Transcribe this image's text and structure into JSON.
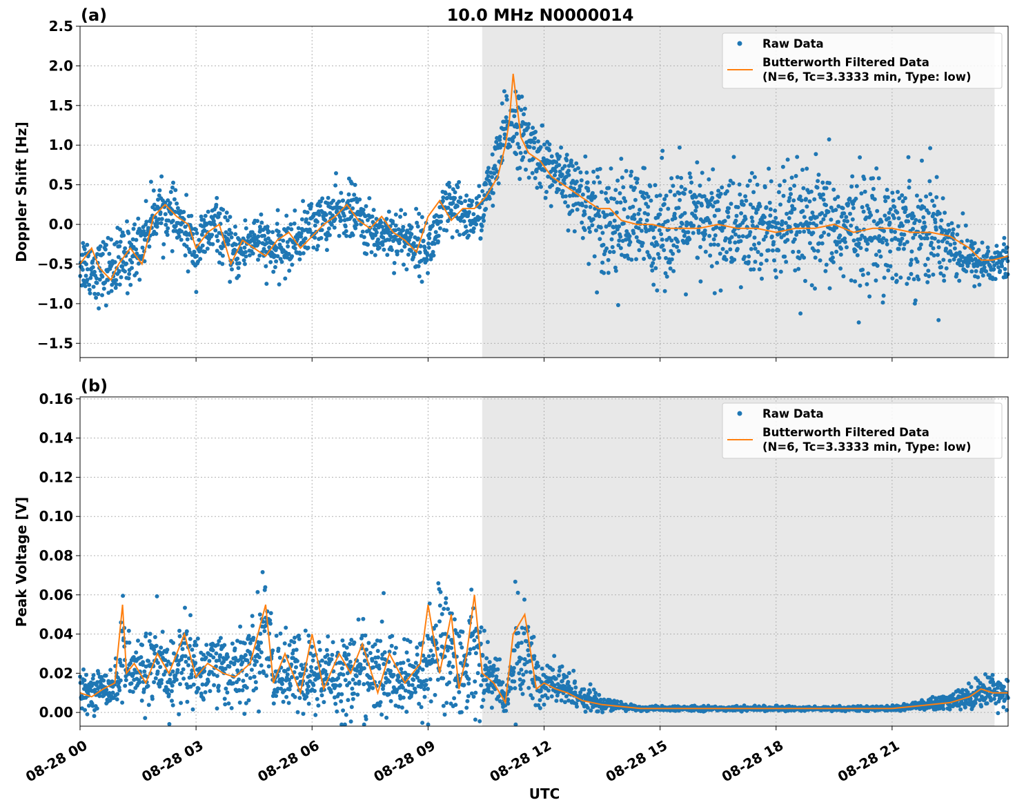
{
  "figure": {
    "title": "10.0 MHz N0000014",
    "xlabel": "UTC"
  },
  "chart_data": [
    {
      "type": "scatter",
      "panel_label": "(a)",
      "ylabel": "Doppler Shift [Hz]",
      "ylim": [
        -1.68,
        2.5
      ],
      "yticks": [
        -1.5,
        -1.0,
        -0.5,
        0.0,
        0.5,
        1.0,
        1.5,
        2.0,
        2.5
      ],
      "ytick_labels": [
        "−1.5",
        "−1.0",
        "−0.5",
        "0.0",
        "0.5",
        "1.0",
        "1.5",
        "2.0",
        "2.5"
      ],
      "xlim_hours": [
        0,
        24
      ],
      "shaded_span_hours": [
        10.4,
        23.65
      ],
      "grid": true,
      "legend": {
        "placement": "upper right",
        "entries": [
          "Raw Data",
          "Butterworth Filtered Data",
          "(N=6, Tc=3.3333 min, Type: low)"
        ]
      },
      "series": [
        {
          "name": "Raw Data",
          "style": "points",
          "color": "#1f77b4",
          "x_hours": [
            0,
            0.5,
            1,
            1.5,
            2,
            2.5,
            3,
            3.5,
            4,
            4.5,
            5,
            5.5,
            6,
            6.5,
            7,
            7.5,
            8,
            8.5,
            9,
            9.5,
            10,
            10.3,
            10.5,
            10.8,
            11,
            11.2,
            11.5,
            12,
            12.5,
            13,
            13.5,
            14,
            14.5,
            15,
            15.5,
            16,
            16.5,
            17,
            17.5,
            18,
            18.5,
            19,
            19.5,
            20,
            20.5,
            21,
            21.5,
            22,
            22.5,
            23,
            23.5,
            24
          ],
          "center": [
            -0.45,
            -0.6,
            -0.5,
            -0.3,
            0.2,
            0.05,
            -0.3,
            0,
            -0.4,
            -0.15,
            -0.35,
            -0.25,
            0,
            0.1,
            0.2,
            -0.1,
            -0.1,
            -0.2,
            -0.3,
            0.2,
            0.1,
            0.1,
            0.35,
            0.75,
            1.2,
            1.35,
            1.05,
            0.8,
            0.5,
            0.35,
            0.1,
            0,
            0,
            0,
            0,
            0,
            0,
            -0.05,
            -0.05,
            -0.05,
            -0.05,
            -0.05,
            -0.05,
            -0.05,
            -0.05,
            -0.05,
            -0.05,
            -0.05,
            -0.2,
            -0.45,
            -0.5,
            -0.45
          ],
          "spread": [
            0.35,
            0.35,
            0.4,
            0.35,
            0.3,
            0.3,
            0.35,
            0.3,
            0.3,
            0.3,
            0.3,
            0.3,
            0.3,
            0.3,
            0.3,
            0.3,
            0.3,
            0.35,
            0.3,
            0.35,
            0.3,
            0.3,
            0.35,
            0.35,
            0.45,
            0.45,
            0.4,
            0.35,
            0.35,
            0.45,
            0.6,
            0.65,
            0.65,
            0.65,
            0.65,
            0.65,
            0.65,
            0.65,
            0.65,
            0.65,
            0.65,
            0.65,
            0.65,
            0.65,
            0.65,
            0.65,
            0.65,
            0.65,
            0.5,
            0.25,
            0.25,
            0.25
          ]
        },
        {
          "name": "Butterworth Filtered Data",
          "style": "line",
          "color": "#ff7f0e",
          "x_hours": [
            0,
            0.3,
            0.5,
            0.8,
            1,
            1.3,
            1.6,
            1.9,
            2.2,
            2.5,
            2.8,
            3,
            3.3,
            3.6,
            3.9,
            4.2,
            4.5,
            4.8,
            5.1,
            5.4,
            5.7,
            6,
            6.3,
            6.6,
            6.9,
            7.2,
            7.5,
            7.8,
            8.1,
            8.4,
            8.7,
            9,
            9.3,
            9.6,
            9.9,
            10.2,
            10.5,
            10.8,
            11,
            11.1,
            11.2,
            11.4,
            11.6,
            11.9,
            12.2,
            12.5,
            12.8,
            13.1,
            13.4,
            13.7,
            14,
            14.4,
            14.8,
            15.2,
            15.6,
            16,
            16.5,
            17,
            17.5,
            18,
            18.5,
            19,
            19.5,
            20,
            20.5,
            21,
            21.5,
            22,
            22.5,
            23,
            23.3,
            23.6,
            24
          ],
          "y": [
            -0.5,
            -0.3,
            -0.55,
            -0.7,
            -0.5,
            -0.3,
            -0.5,
            0.1,
            0.25,
            0.1,
            0.0,
            -0.3,
            -0.1,
            0.0,
            -0.5,
            -0.2,
            -0.3,
            -0.4,
            -0.2,
            -0.1,
            -0.3,
            -0.15,
            0.0,
            0.1,
            0.25,
            0.05,
            -0.05,
            0.1,
            -0.1,
            -0.2,
            -0.35,
            0.1,
            0.3,
            0.05,
            0.2,
            0.2,
            0.35,
            0.6,
            1.0,
            1.3,
            1.9,
            1.1,
            0.9,
            0.8,
            0.6,
            0.5,
            0.4,
            0.3,
            0.2,
            0.2,
            0.05,
            0.0,
            0.0,
            -0.05,
            -0.05,
            -0.05,
            0.0,
            -0.05,
            -0.05,
            -0.1,
            -0.05,
            -0.05,
            0.0,
            -0.1,
            -0.05,
            -0.05,
            -0.1,
            -0.1,
            -0.15,
            -0.3,
            -0.45,
            -0.45,
            -0.4
          ]
        }
      ]
    },
    {
      "type": "scatter",
      "panel_label": "(b)",
      "ylabel": "Peak Voltage [V]",
      "ylim": [
        -0.007,
        0.161
      ],
      "yticks": [
        0.0,
        0.02,
        0.04,
        0.06,
        0.08,
        0.1,
        0.12,
        0.14,
        0.16
      ],
      "ytick_labels": [
        "0.00",
        "0.02",
        "0.04",
        "0.06",
        "0.08",
        "0.10",
        "0.12",
        "0.14",
        "0.16"
      ],
      "xlim_hours": [
        0,
        24
      ],
      "xticks_hours": [
        0,
        3,
        6,
        9,
        12,
        15,
        18,
        21
      ],
      "xtick_labels": [
        "08-28 00",
        "08-28 03",
        "08-28 06",
        "08-28 09",
        "08-28 12",
        "08-28 15",
        "08-28 18",
        "08-28 21"
      ],
      "shaded_span_hours": [
        10.4,
        23.65
      ],
      "grid": true,
      "legend": {
        "placement": "upper right",
        "entries": [
          "Raw Data",
          "Butterworth Filtered Data",
          "(N=6, Tc=3.3333 min, Type: low)"
        ]
      },
      "series": [
        {
          "name": "Raw Data",
          "style": "points",
          "color": "#1f77b4",
          "x_hours": [
            0,
            0.5,
            1,
            1.1,
            1.2,
            1.5,
            1.8,
            2,
            2.5,
            2.7,
            3,
            3.5,
            4,
            4.5,
            4.8,
            5,
            5.5,
            6,
            6.5,
            7,
            7.3,
            7.6,
            8,
            8.5,
            8.9,
            9.2,
            9.6,
            9.9,
            10.2,
            10.5,
            10.8,
            11,
            11.3,
            11.6,
            11.9,
            12.2,
            12.5,
            12.8,
            13,
            13.5,
            14,
            14.5,
            15,
            16,
            17,
            18,
            19,
            20,
            21,
            21.5,
            22,
            22.5,
            23,
            23.5,
            24
          ],
          "center": [
            0.01,
            0.012,
            0.015,
            0.04,
            0.02,
            0.02,
            0.025,
            0.02,
            0.02,
            0.03,
            0.02,
            0.025,
            0.02,
            0.025,
            0.045,
            0.02,
            0.02,
            0.018,
            0.02,
            0.018,
            0.025,
            0.018,
            0.02,
            0.015,
            0.02,
            0.035,
            0.03,
            0.02,
            0.035,
            0.02,
            0.015,
            0.006,
            0.03,
            0.03,
            0.012,
            0.015,
            0.012,
            0.01,
            0.008,
            0.004,
            0.003,
            0.002,
            0.002,
            0.002,
            0.002,
            0.002,
            0.002,
            0.002,
            0.002,
            0.003,
            0.004,
            0.005,
            0.008,
            0.012,
            0.01
          ],
          "spread": [
            0.008,
            0.008,
            0.01,
            0.03,
            0.015,
            0.015,
            0.018,
            0.02,
            0.018,
            0.025,
            0.015,
            0.018,
            0.015,
            0.02,
            0.03,
            0.015,
            0.02,
            0.018,
            0.02,
            0.02,
            0.02,
            0.02,
            0.02,
            0.015,
            0.02,
            0.03,
            0.03,
            0.02,
            0.03,
            0.015,
            0.012,
            0.006,
            0.025,
            0.025,
            0.012,
            0.012,
            0.01,
            0.008,
            0.006,
            0.003,
            0.002,
            0.001,
            0.001,
            0.001,
            0.001,
            0.001,
            0.001,
            0.001,
            0.001,
            0.002,
            0.003,
            0.004,
            0.006,
            0.008,
            0.006
          ]
        },
        {
          "name": "Butterworth Filtered Data",
          "style": "line",
          "color": "#ff7f0e",
          "x_hours": [
            0,
            0.3,
            0.6,
            0.9,
            1.1,
            1.2,
            1.4,
            1.7,
            2,
            2.3,
            2.7,
            3,
            3.3,
            3.7,
            4,
            4.4,
            4.8,
            5,
            5.3,
            5.7,
            6,
            6.3,
            6.7,
            7,
            7.3,
            7.7,
            8,
            8.4,
            8.8,
            9,
            9.3,
            9.6,
            9.8,
            10,
            10.2,
            10.4,
            10.7,
            11,
            11.2,
            11.5,
            11.8,
            12,
            12.3,
            12.6,
            13,
            13.5,
            14,
            14.5,
            15,
            16,
            17,
            18,
            19,
            20,
            21,
            21.5,
            22,
            22.5,
            23,
            23.3,
            23.6,
            24
          ],
          "y": [
            0.01,
            0.008,
            0.012,
            0.015,
            0.055,
            0.02,
            0.025,
            0.015,
            0.03,
            0.02,
            0.04,
            0.018,
            0.025,
            0.02,
            0.018,
            0.025,
            0.055,
            0.015,
            0.03,
            0.01,
            0.04,
            0.012,
            0.03,
            0.02,
            0.035,
            0.01,
            0.03,
            0.015,
            0.025,
            0.055,
            0.02,
            0.05,
            0.012,
            0.03,
            0.06,
            0.02,
            0.015,
            0.005,
            0.04,
            0.05,
            0.012,
            0.015,
            0.012,
            0.01,
            0.006,
            0.004,
            0.003,
            0.002,
            0.002,
            0.002,
            0.002,
            0.002,
            0.002,
            0.002,
            0.002,
            0.003,
            0.004,
            0.005,
            0.008,
            0.012,
            0.01,
            0.01
          ]
        }
      ]
    }
  ]
}
